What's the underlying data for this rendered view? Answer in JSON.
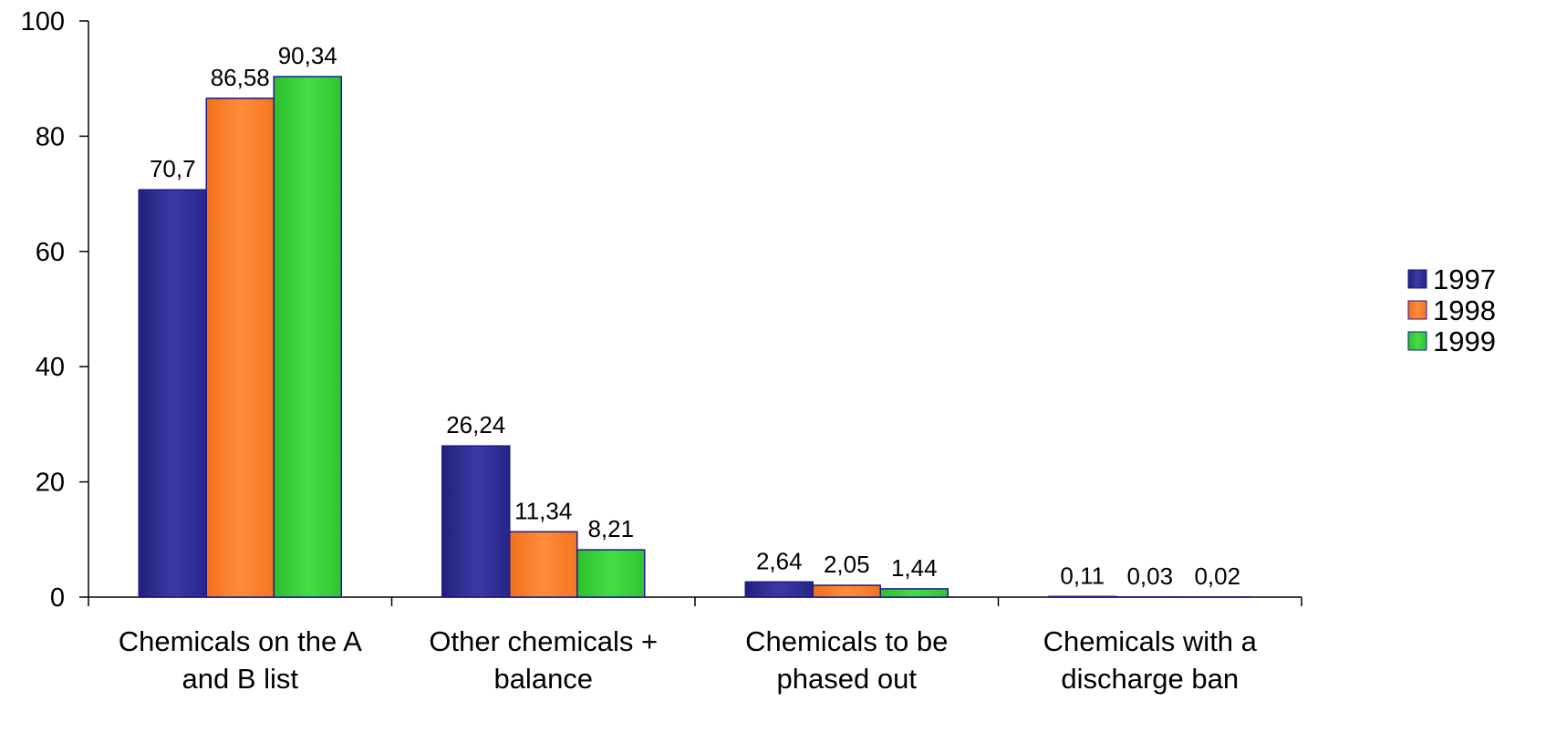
{
  "chart_data": {
    "type": "bar",
    "title": "",
    "xlabel": "",
    "ylabel": "",
    "ylim": [
      0,
      100
    ],
    "yticks": [
      0,
      20,
      40,
      60,
      80,
      100
    ],
    "grid": false,
    "legend_position": "right",
    "categories": [
      [
        "Chemicals on the A",
        "and B list"
      ],
      [
        "Other chemicals +",
        "balance"
      ],
      [
        "Chemicals to be",
        "phased out"
      ],
      [
        "Chemicals with a",
        "discharge ban"
      ]
    ],
    "series": [
      {
        "name": "1997",
        "color": "#333399",
        "values": [
          70.7,
          26.24,
          2.64,
          0.11
        ],
        "labels": [
          "70,7",
          "26,24",
          "2,64",
          "0,11"
        ]
      },
      {
        "name": "1998",
        "color": "#FF7F27",
        "values": [
          86.58,
          11.34,
          2.05,
          0.03
        ],
        "labels": [
          "86,58",
          "11,34",
          "2,05",
          "0,03"
        ]
      },
      {
        "name": "1999",
        "color": "#33CC33",
        "values": [
          90.34,
          8.21,
          1.44,
          0.02
        ],
        "labels": [
          "90,34",
          "8,21",
          "1,44",
          "0,02"
        ]
      }
    ]
  }
}
